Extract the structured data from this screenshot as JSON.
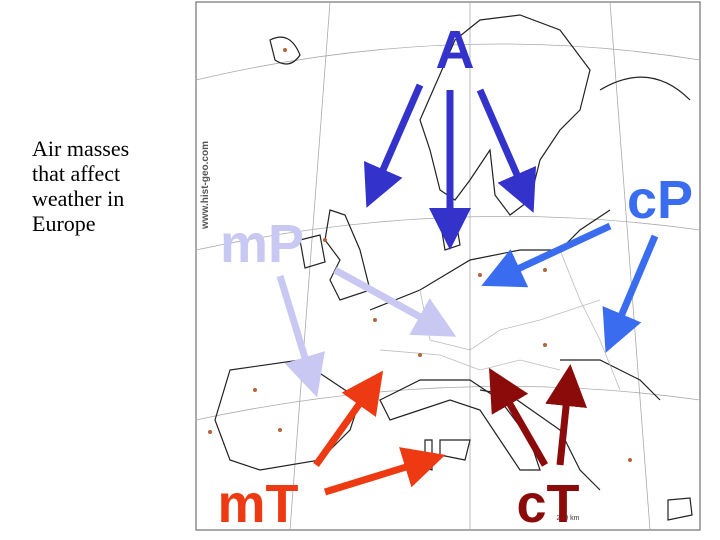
{
  "caption": "Air masses that affect weather in Europe",
  "map": {
    "credit": "www.hist-geo.com",
    "scale": "250 km",
    "labels": [
      {
        "text": "A"
      },
      {
        "text": "cP"
      },
      {
        "text": "mP"
      },
      {
        "text": "mT"
      },
      {
        "text": "cT"
      }
    ]
  }
}
